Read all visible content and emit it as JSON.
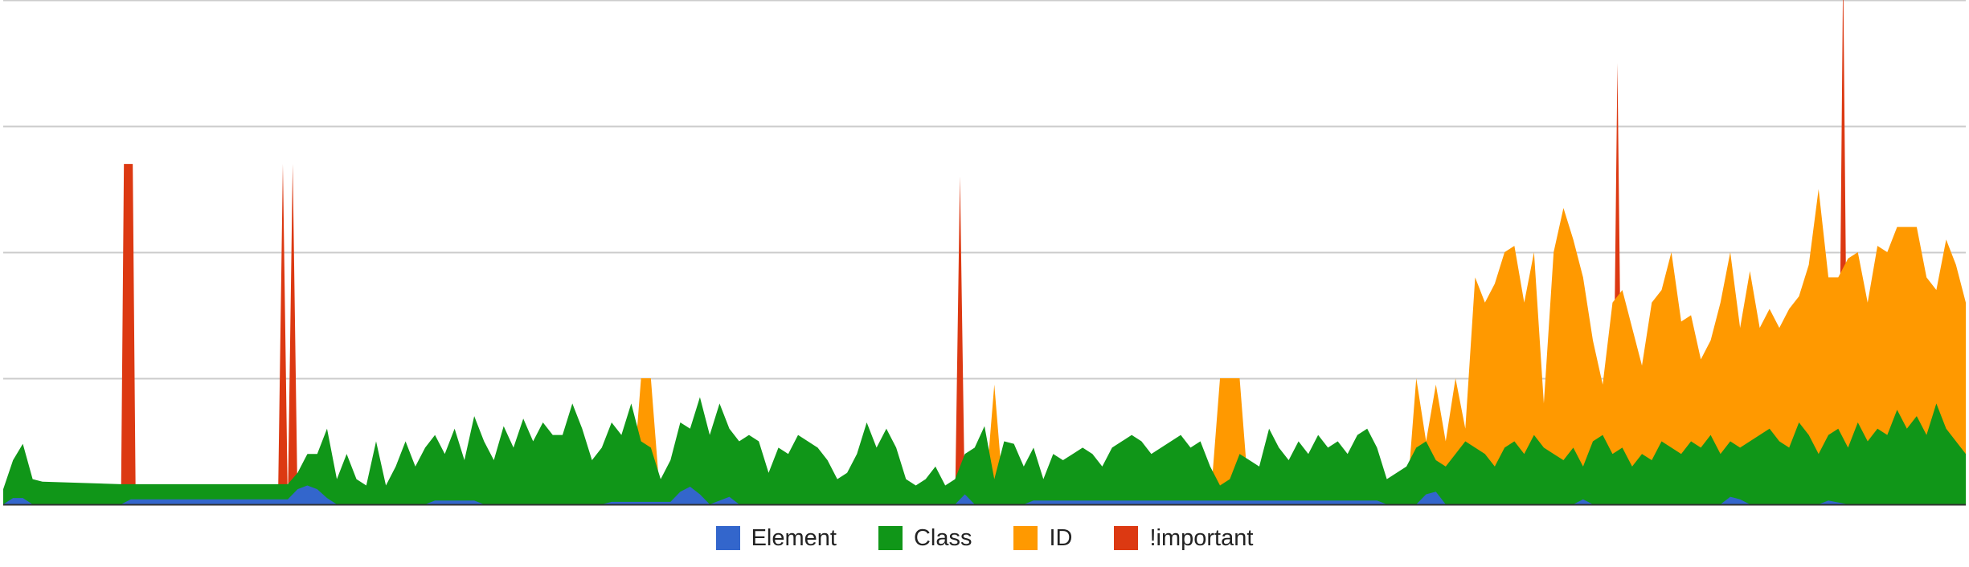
{
  "colors": {
    "element": "#3366cc",
    "class": "#109618",
    "id": "#ff9900",
    "important": "#dc3912",
    "gridline": "#cccccc",
    "axis": "#333333"
  },
  "legend": [
    {
      "name": "Element",
      "color": "#3366cc"
    },
    {
      "name": "Class",
      "color": "#109618"
    },
    {
      "name": "ID",
      "color": "#ff9900"
    },
    {
      "name": "!important",
      "color": "#dc3912"
    }
  ],
  "chart_data": {
    "type": "area",
    "stacked": false,
    "title": "",
    "xlabel": "",
    "ylabel": "",
    "x_range": [
      0,
      200
    ],
    "ylim": [
      0,
      400
    ],
    "gridlines_y": [
      100,
      200,
      300,
      400
    ],
    "grid": true,
    "tick_labels_shown": false,
    "legend_position": "bottom",
    "series": [
      {
        "name": "Element",
        "color": "#3366cc",
        "points": [
          [
            0,
            0
          ],
          [
            1,
            5
          ],
          [
            2,
            5
          ],
          [
            3,
            0
          ],
          [
            12,
            0
          ],
          [
            13,
            4
          ],
          [
            14,
            4
          ],
          [
            15,
            4
          ],
          [
            20,
            4
          ],
          [
            25,
            4
          ],
          [
            29,
            4
          ],
          [
            30,
            12
          ],
          [
            31,
            15
          ],
          [
            32,
            12
          ],
          [
            33,
            5
          ],
          [
            34,
            0
          ],
          [
            43,
            0
          ],
          [
            44,
            3
          ],
          [
            48,
            3
          ],
          [
            49,
            0
          ],
          [
            61,
            0
          ],
          [
            62,
            2
          ],
          [
            68,
            2
          ],
          [
            69,
            10
          ],
          [
            70,
            14
          ],
          [
            71,
            8
          ],
          [
            72,
            0
          ],
          [
            74,
            6
          ],
          [
            75,
            0
          ],
          [
            97,
            0
          ],
          [
            98,
            8
          ],
          [
            99,
            0
          ],
          [
            104,
            0
          ],
          [
            105,
            3
          ],
          [
            140,
            3
          ],
          [
            141,
            0
          ],
          [
            144,
            0
          ],
          [
            145,
            8
          ],
          [
            146,
            10
          ],
          [
            147,
            0
          ],
          [
            160,
            0
          ],
          [
            161,
            4
          ],
          [
            162,
            0
          ],
          [
            175,
            0
          ],
          [
            176,
            6
          ],
          [
            177,
            4
          ],
          [
            178,
            0
          ],
          [
            185,
            0
          ],
          [
            186,
            3
          ],
          [
            188,
            0
          ],
          [
            200,
            0
          ]
        ]
      },
      {
        "name": "Class",
        "color": "#109618",
        "points": [
          [
            0,
            12
          ],
          [
            1,
            35
          ],
          [
            2,
            48
          ],
          [
            3,
            20
          ],
          [
            4,
            18
          ],
          [
            12,
            16
          ],
          [
            20,
            16
          ],
          [
            25,
            16
          ],
          [
            29,
            16
          ],
          [
            30,
            25
          ],
          [
            31,
            40
          ],
          [
            32,
            40
          ],
          [
            33,
            60
          ],
          [
            34,
            20
          ],
          [
            35,
            40
          ],
          [
            36,
            20
          ],
          [
            37,
            15
          ],
          [
            38,
            50
          ],
          [
            39,
            15
          ],
          [
            40,
            30
          ],
          [
            41,
            50
          ],
          [
            42,
            30
          ],
          [
            43,
            45
          ],
          [
            44,
            55
          ],
          [
            45,
            40
          ],
          [
            46,
            60
          ],
          [
            47,
            35
          ],
          [
            48,
            70
          ],
          [
            49,
            50
          ],
          [
            50,
            35
          ],
          [
            51,
            62
          ],
          [
            52,
            45
          ],
          [
            53,
            68
          ],
          [
            54,
            50
          ],
          [
            55,
            65
          ],
          [
            56,
            55
          ],
          [
            57,
            55
          ],
          [
            58,
            80
          ],
          [
            59,
            60
          ],
          [
            60,
            35
          ],
          [
            61,
            45
          ],
          [
            62,
            65
          ],
          [
            63,
            55
          ],
          [
            64,
            80
          ],
          [
            65,
            50
          ],
          [
            66,
            45
          ],
          [
            67,
            20
          ],
          [
            68,
            35
          ],
          [
            69,
            65
          ],
          [
            70,
            60
          ],
          [
            71,
            85
          ],
          [
            72,
            55
          ],
          [
            73,
            80
          ],
          [
            74,
            60
          ],
          [
            75,
            50
          ],
          [
            76,
            55
          ],
          [
            77,
            50
          ],
          [
            78,
            25
          ],
          [
            79,
            45
          ],
          [
            80,
            40
          ],
          [
            81,
            55
          ],
          [
            82,
            50
          ],
          [
            83,
            45
          ],
          [
            84,
            35
          ],
          [
            85,
            20
          ],
          [
            86,
            25
          ],
          [
            87,
            40
          ],
          [
            88,
            65
          ],
          [
            89,
            45
          ],
          [
            90,
            60
          ],
          [
            91,
            45
          ],
          [
            92,
            20
          ],
          [
            93,
            15
          ],
          [
            94,
            20
          ],
          [
            95,
            30
          ],
          [
            96,
            15
          ],
          [
            97,
            20
          ],
          [
            98,
            40
          ],
          [
            99,
            45
          ],
          [
            100,
            62
          ],
          [
            101,
            20
          ],
          [
            102,
            50
          ],
          [
            103,
            48
          ],
          [
            104,
            30
          ],
          [
            105,
            45
          ],
          [
            106,
            20
          ],
          [
            107,
            40
          ],
          [
            108,
            35
          ],
          [
            109,
            40
          ],
          [
            110,
            45
          ],
          [
            111,
            40
          ],
          [
            112,
            30
          ],
          [
            113,
            45
          ],
          [
            114,
            50
          ],
          [
            115,
            55
          ],
          [
            116,
            50
          ],
          [
            117,
            40
          ],
          [
            118,
            45
          ],
          [
            119,
            50
          ],
          [
            120,
            55
          ],
          [
            121,
            45
          ],
          [
            122,
            50
          ],
          [
            123,
            30
          ],
          [
            124,
            15
          ],
          [
            125,
            20
          ],
          [
            126,
            40
          ],
          [
            127,
            35
          ],
          [
            128,
            30
          ],
          [
            129,
            60
          ],
          [
            130,
            45
          ],
          [
            131,
            35
          ],
          [
            132,
            50
          ],
          [
            133,
            40
          ],
          [
            134,
            55
          ],
          [
            135,
            45
          ],
          [
            136,
            50
          ],
          [
            137,
            40
          ],
          [
            138,
            55
          ],
          [
            139,
            60
          ],
          [
            140,
            45
          ],
          [
            141,
            20
          ],
          [
            142,
            25
          ],
          [
            143,
            30
          ],
          [
            144,
            45
          ],
          [
            145,
            50
          ],
          [
            146,
            35
          ],
          [
            147,
            30
          ],
          [
            148,
            40
          ],
          [
            149,
            50
          ],
          [
            150,
            45
          ],
          [
            151,
            40
          ],
          [
            152,
            30
          ],
          [
            153,
            45
          ],
          [
            154,
            50
          ],
          [
            155,
            40
          ],
          [
            156,
            55
          ],
          [
            157,
            45
          ],
          [
            158,
            40
          ],
          [
            159,
            35
          ],
          [
            160,
            45
          ],
          [
            161,
            30
          ],
          [
            162,
            50
          ],
          [
            163,
            55
          ],
          [
            164,
            40
          ],
          [
            165,
            45
          ],
          [
            166,
            30
          ],
          [
            167,
            40
          ],
          [
            168,
            35
          ],
          [
            169,
            50
          ],
          [
            170,
            45
          ],
          [
            171,
            40
          ],
          [
            172,
            50
          ],
          [
            173,
            45
          ],
          [
            174,
            55
          ],
          [
            175,
            40
          ],
          [
            176,
            50
          ],
          [
            177,
            45
          ],
          [
            178,
            50
          ],
          [
            179,
            55
          ],
          [
            180,
            60
          ],
          [
            181,
            50
          ],
          [
            182,
            45
          ],
          [
            183,
            65
          ],
          [
            184,
            55
          ],
          [
            185,
            40
          ],
          [
            186,
            55
          ],
          [
            187,
            60
          ],
          [
            188,
            45
          ],
          [
            189,
            65
          ],
          [
            190,
            50
          ],
          [
            191,
            60
          ],
          [
            192,
            55
          ],
          [
            193,
            75
          ],
          [
            194,
            60
          ],
          [
            195,
            70
          ],
          [
            196,
            55
          ],
          [
            197,
            80
          ],
          [
            198,
            60
          ],
          [
            199,
            50
          ],
          [
            200,
            40
          ]
        ]
      },
      {
        "name": "ID",
        "color": "#ff9900",
        "points": [
          [
            0,
            0
          ],
          [
            64,
            0
          ],
          [
            65,
            100
          ],
          [
            66,
            100
          ],
          [
            67,
            0
          ],
          [
            100,
            0
          ],
          [
            101,
            95
          ],
          [
            102,
            0
          ],
          [
            123,
            0
          ],
          [
            124,
            100
          ],
          [
            126,
            100
          ],
          [
            127,
            0
          ],
          [
            143,
            0
          ],
          [
            144,
            100
          ],
          [
            145,
            50
          ],
          [
            146,
            95
          ],
          [
            147,
            50
          ],
          [
            148,
            100
          ],
          [
            149,
            60
          ],
          [
            150,
            180
          ],
          [
            151,
            160
          ],
          [
            152,
            175
          ],
          [
            153,
            200
          ],
          [
            154,
            205
          ],
          [
            155,
            160
          ],
          [
            156,
            200
          ],
          [
            157,
            80
          ],
          [
            158,
            200
          ],
          [
            159,
            235
          ],
          [
            160,
            210
          ],
          [
            161,
            180
          ],
          [
            162,
            130
          ],
          [
            163,
            95
          ],
          [
            164,
            160
          ],
          [
            165,
            170
          ],
          [
            166,
            140
          ],
          [
            167,
            110
          ],
          [
            168,
            160
          ],
          [
            169,
            170
          ],
          [
            170,
            200
          ],
          [
            171,
            145
          ],
          [
            172,
            150
          ],
          [
            173,
            115
          ],
          [
            174,
            130
          ],
          [
            175,
            160
          ],
          [
            176,
            200
          ],
          [
            177,
            140
          ],
          [
            178,
            185
          ],
          [
            179,
            140
          ],
          [
            180,
            155
          ],
          [
            181,
            140
          ],
          [
            182,
            155
          ],
          [
            183,
            165
          ],
          [
            184,
            190
          ],
          [
            185,
            250
          ],
          [
            186,
            180
          ],
          [
            187,
            180
          ],
          [
            188,
            195
          ],
          [
            189,
            200
          ],
          [
            190,
            160
          ],
          [
            191,
            205
          ],
          [
            192,
            200
          ],
          [
            193,
            220
          ],
          [
            194,
            220
          ],
          [
            195,
            220
          ],
          [
            196,
            180
          ],
          [
            197,
            170
          ],
          [
            198,
            210
          ],
          [
            199,
            190
          ],
          [
            200,
            160
          ]
        ]
      },
      {
        "name": "!important",
        "color": "#dc3912",
        "points": [
          [
            0,
            0
          ],
          [
            12,
            0
          ],
          [
            12.3,
            270
          ],
          [
            13.2,
            270
          ],
          [
            13.5,
            0
          ],
          [
            28,
            0
          ],
          [
            28.5,
            270
          ],
          [
            29,
            0
          ],
          [
            29.5,
            270
          ],
          [
            30,
            0
          ],
          [
            97,
            0
          ],
          [
            97.5,
            260
          ],
          [
            98,
            0
          ],
          [
            164,
            0
          ],
          [
            164.5,
            350
          ],
          [
            165,
            0
          ],
          [
            187,
            0
          ],
          [
            187.5,
            425
          ],
          [
            188,
            0
          ],
          [
            200,
            0
          ]
        ]
      }
    ]
  }
}
